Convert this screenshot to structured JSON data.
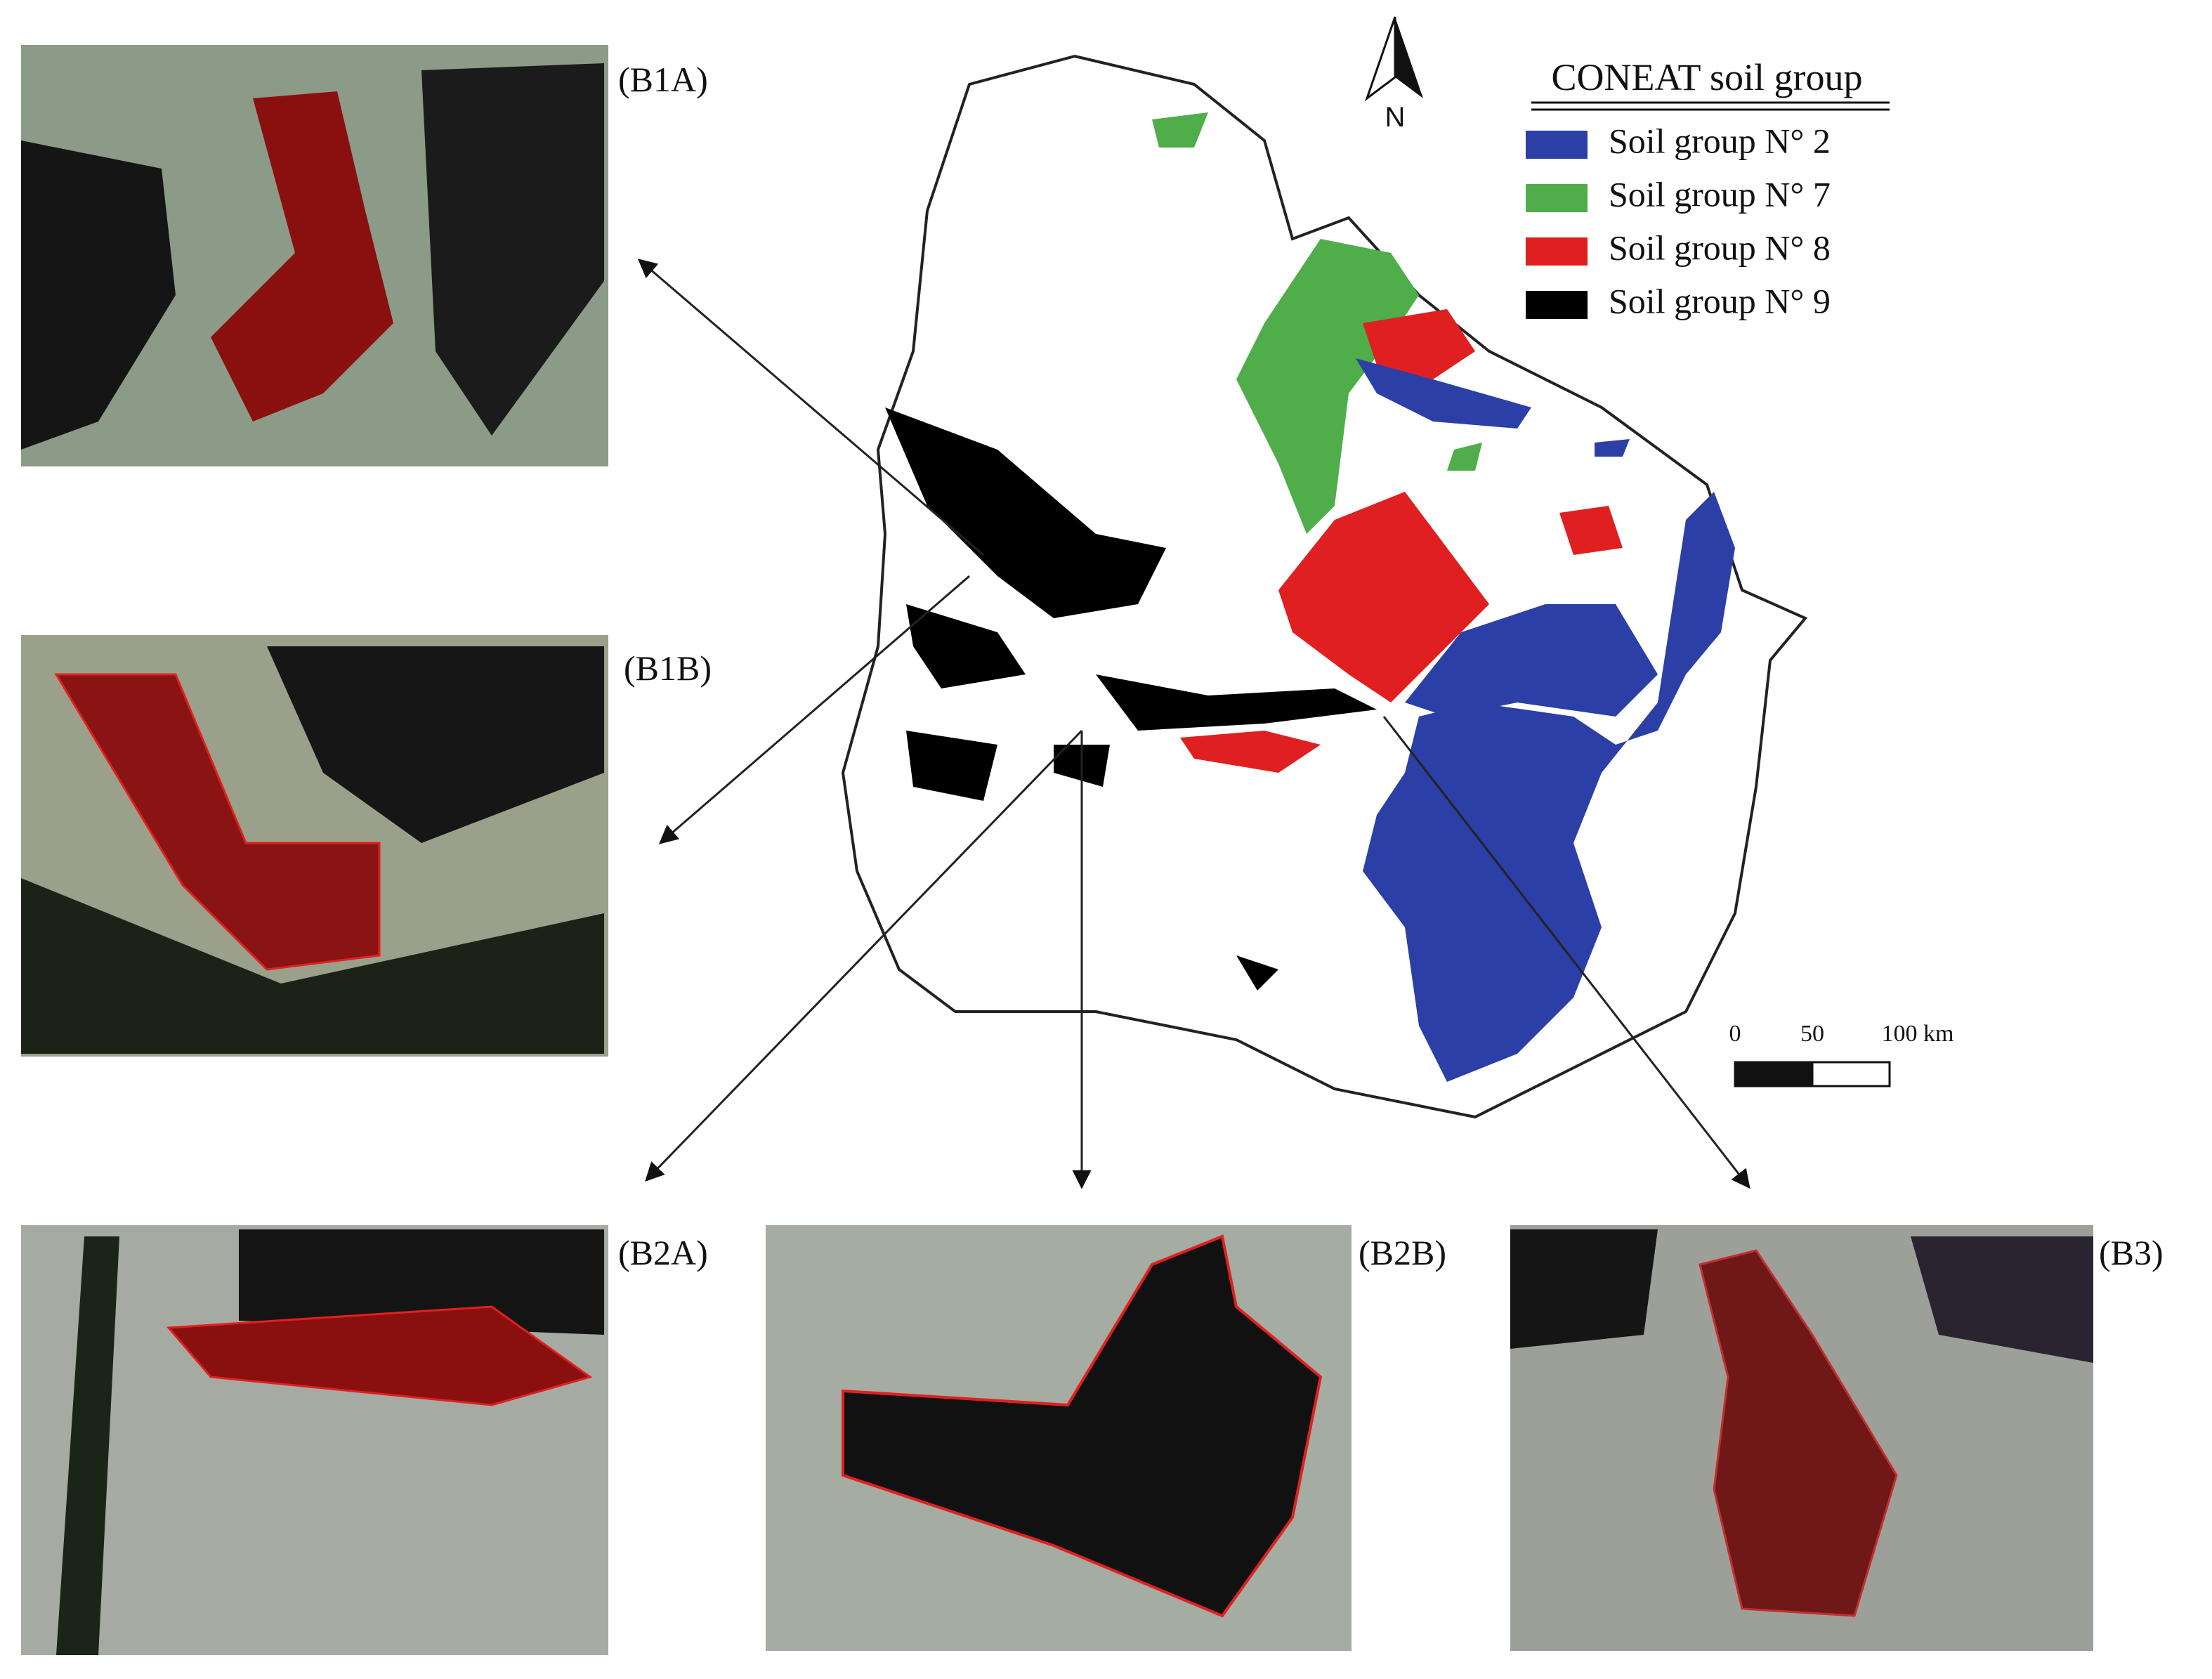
{
  "legend": {
    "title": "CONEAT soil group",
    "items": [
      {
        "label": "Soil group N° 2",
        "color": "#2b3fa6"
      },
      {
        "label": "Soil group N° 7",
        "color": "#4fae4a"
      },
      {
        "label": "Soil group N° 8",
        "color": "#e02020"
      },
      {
        "label": "Soil group N° 9",
        "color": "#000000"
      }
    ]
  },
  "north": "N",
  "scale_bar": {
    "labels": [
      "0",
      "50",
      "100 km"
    ]
  },
  "panels": [
    {
      "label": "(B1A)"
    },
    {
      "label": "(B1B)"
    },
    {
      "label": "(B2A)"
    },
    {
      "label": "(B2B)"
    },
    {
      "label": "(B3)"
    }
  ]
}
